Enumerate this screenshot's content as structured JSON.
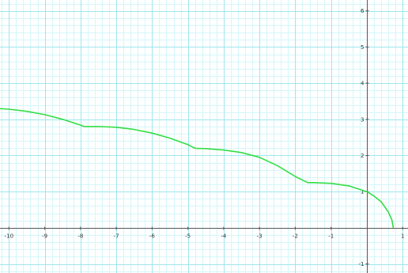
{
  "chart_data": {
    "type": "line",
    "title": "",
    "xlabel": "",
    "ylabel": "",
    "xlim": [
      -10.25,
      1.15
    ],
    "ylim": [
      -1.25,
      6.3
    ],
    "grid": true,
    "minor_grid_step": 0.2,
    "x_ticks": [
      -10,
      -9,
      -8,
      -7,
      -6,
      -5,
      -4,
      -3,
      -2,
      -1,
      1
    ],
    "x_tick_labels": [
      "-10",
      "-9",
      "-8",
      "-7",
      "-6",
      "-5",
      "-4",
      "-3",
      "-2",
      "-1",
      "1"
    ],
    "y_ticks": [
      -1,
      1,
      2,
      3,
      4,
      5,
      6
    ],
    "y_tick_labels": [
      "-1",
      "1",
      "2",
      "3",
      "4",
      "5",
      "6"
    ],
    "series": [
      {
        "color": "#33dd44",
        "x": [
          -10.3,
          -10,
          -9.5,
          -9,
          -8.5,
          -8.0,
          -7.9,
          -7.5,
          -7,
          -6.5,
          -6,
          -5.5,
          -5.0,
          -4.8,
          -4.5,
          -4,
          -3.5,
          -3,
          -2.5,
          -2.0,
          -1.65,
          -1.5,
          -1,
          -0.5,
          0,
          0.2,
          0.4,
          0.6,
          0.7,
          0.74
        ],
        "y": [
          3.3,
          3.28,
          3.22,
          3.13,
          3.0,
          2.84,
          2.8,
          2.8,
          2.78,
          2.72,
          2.62,
          2.48,
          2.3,
          2.2,
          2.19,
          2.15,
          2.08,
          1.95,
          1.72,
          1.42,
          1.25,
          1.25,
          1.23,
          1.16,
          1.0,
          0.88,
          0.72,
          0.44,
          0.22,
          0.0
        ]
      }
    ]
  }
}
